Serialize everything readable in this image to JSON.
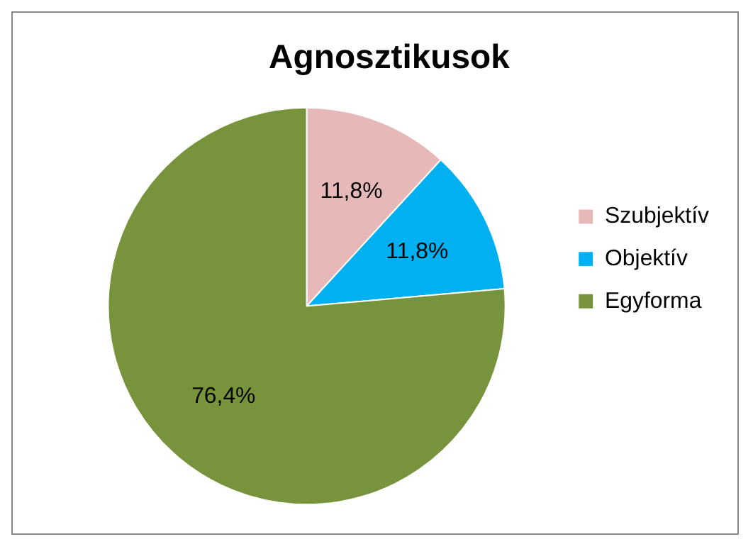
{
  "chart_data": {
    "type": "pie",
    "title": "Agnosztikusok",
    "categories": [
      "Szubjektív",
      "Objektív",
      "Egyforma"
    ],
    "values": [
      11.8,
      11.8,
      76.4
    ],
    "colors": [
      "#e6b9b8",
      "#00b0f0",
      "#77933c"
    ],
    "value_labels": [
      "11,8%",
      "11,8%",
      "76,4%"
    ],
    "legend": "right"
  }
}
